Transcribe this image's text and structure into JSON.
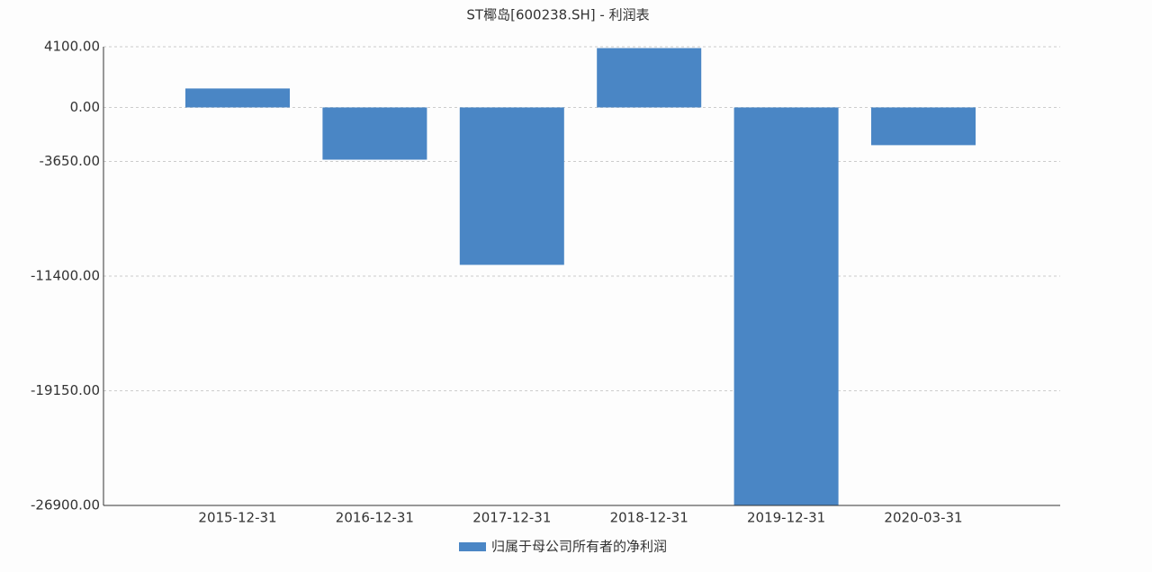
{
  "chart_data": {
    "type": "bar",
    "title": "ST椰岛[600238.SH] - 利润表",
    "categories": [
      "2015-12-31",
      "2016-12-31",
      "2017-12-31",
      "2018-12-31",
      "2019-12-31",
      "2020-03-31"
    ],
    "series": [
      {
        "name": "归属于母公司所有者的净利润",
        "color": "#4a86c5",
        "values": [
          1280,
          -3530,
          -10640,
          4010,
          -26870,
          -2550
        ]
      }
    ],
    "ylim": [
      -26900,
      4100
    ],
    "yticks": [
      {
        "value": 4100,
        "label": "4100.00"
      },
      {
        "value": 0,
        "label": "0.00"
      },
      {
        "value": -3650,
        "label": "-3650.00"
      },
      {
        "value": -11400,
        "label": "-11400.00"
      },
      {
        "value": -19150,
        "label": "-19150.00"
      },
      {
        "value": -26900,
        "label": "-26900.00"
      }
    ],
    "grid": true
  }
}
